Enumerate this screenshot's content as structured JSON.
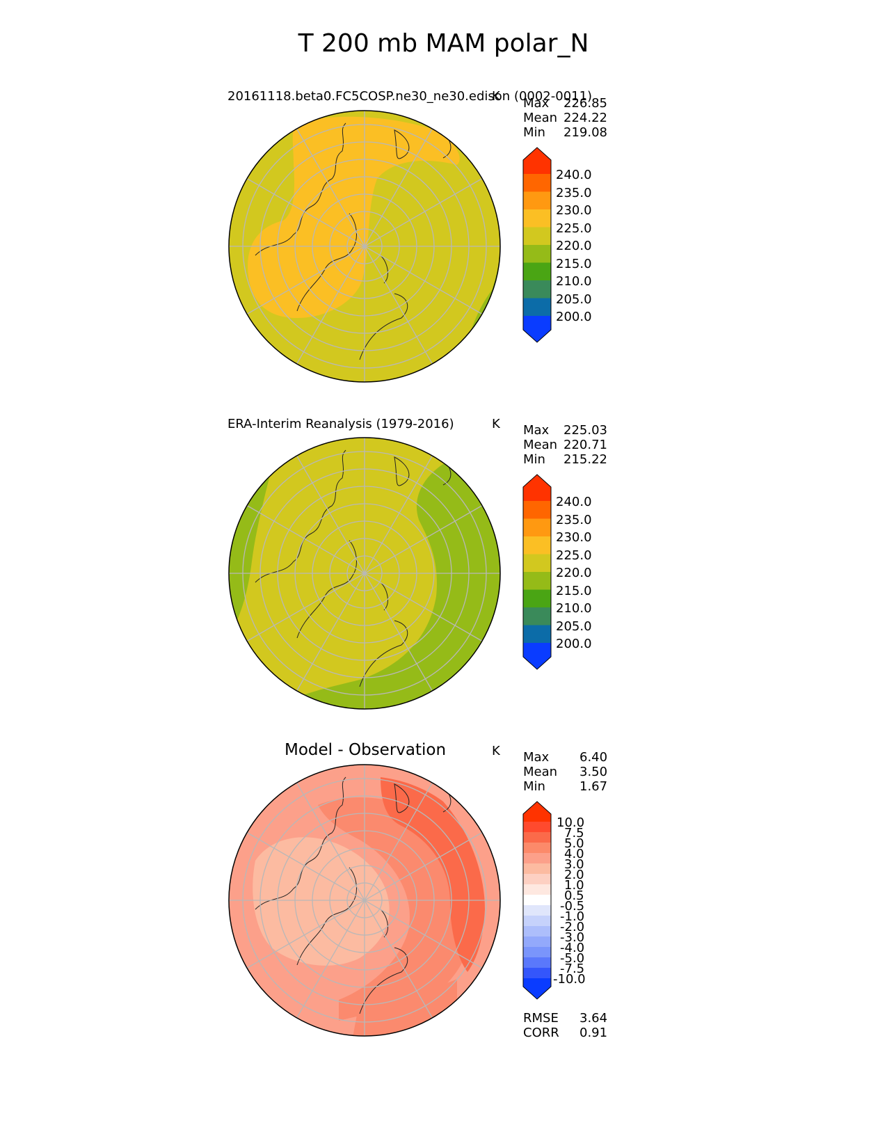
{
  "title": "T 200 mb MAM polar_N",
  "panels": [
    {
      "title": "20161118.beta0.FC5COSP.ne30_ne30.edison (0002-0011)",
      "unit": "K",
      "stats": {
        "max_label": "Max",
        "max": "226.85",
        "mean_label": "Mean",
        "mean": "224.22",
        "min_label": "Min",
        "min": "219.08"
      },
      "colorbar": {
        "levels": [
          "240.0",
          "235.0",
          "230.0",
          "225.0",
          "220.0",
          "215.0",
          "210.0",
          "205.0",
          "200.0"
        ],
        "colors": [
          "#ff3300",
          "#ff6600",
          "#ff9911",
          "#fbbf24",
          "#d2c81f",
          "#95bb18",
          "#4aa514",
          "#3a8a5a",
          "#0c6ca8",
          "#0a3cff"
        ]
      },
      "field_colors": {
        "warm": "#fbbf24",
        "base": "#d2c81f",
        "cool": "#95bb18"
      }
    },
    {
      "title": "ERA-Interim Reanalysis (1979-2016)",
      "unit": "K",
      "stats": {
        "max_label": "Max",
        "max": "225.03",
        "mean_label": "Mean",
        "mean": "220.71",
        "min_label": "Min",
        "min": "215.22"
      },
      "colorbar": {
        "levels": [
          "240.0",
          "235.0",
          "230.0",
          "225.0",
          "220.0",
          "215.0",
          "210.0",
          "205.0",
          "200.0"
        ],
        "colors": [
          "#ff3300",
          "#ff6600",
          "#ff9911",
          "#fbbf24",
          "#d2c81f",
          "#95bb18",
          "#4aa514",
          "#3a8a5a",
          "#0c6ca8",
          "#0a3cff"
        ]
      },
      "field_colors": {
        "base": "#d2c81f",
        "cool": "#95bb18"
      }
    },
    {
      "title": "Model - Observation",
      "unit": "K",
      "stats": {
        "max_label": "Max",
        "max": "6.40",
        "mean_label": "Mean",
        "mean": "3.50",
        "min_label": "Min",
        "min": "1.67"
      },
      "colorbar": {
        "levels": [
          "10.0",
          "7.5",
          "5.0",
          "4.0",
          "3.0",
          "2.0",
          "1.0",
          "0.5",
          "-0.5",
          "-1.0",
          "-2.0",
          "-3.0",
          "-4.0",
          "-5.0",
          "-7.5",
          "-10.0"
        ],
        "colors": [
          "#ff3300",
          "#ff4a2e",
          "#fb6a4a",
          "#fc8a6a",
          "#fca08a",
          "#fcbba1",
          "#fdd0c2",
          "#fee8e0",
          "#ffffff",
          "#e0e6fb",
          "#c6d2fb",
          "#adbefb",
          "#93a9fb",
          "#7a95fb",
          "#5a78fb",
          "#3456fb",
          "#0a3cff"
        ]
      },
      "field_colors": {
        "low": "#fcbba1",
        "mid": "#fca08a",
        "high": "#fb8a6e",
        "top": "#fb6a4a"
      },
      "metrics": {
        "rmse_label": "RMSE",
        "rmse": "3.64",
        "corr_label": "CORR",
        "corr": "0.91"
      }
    }
  ]
}
